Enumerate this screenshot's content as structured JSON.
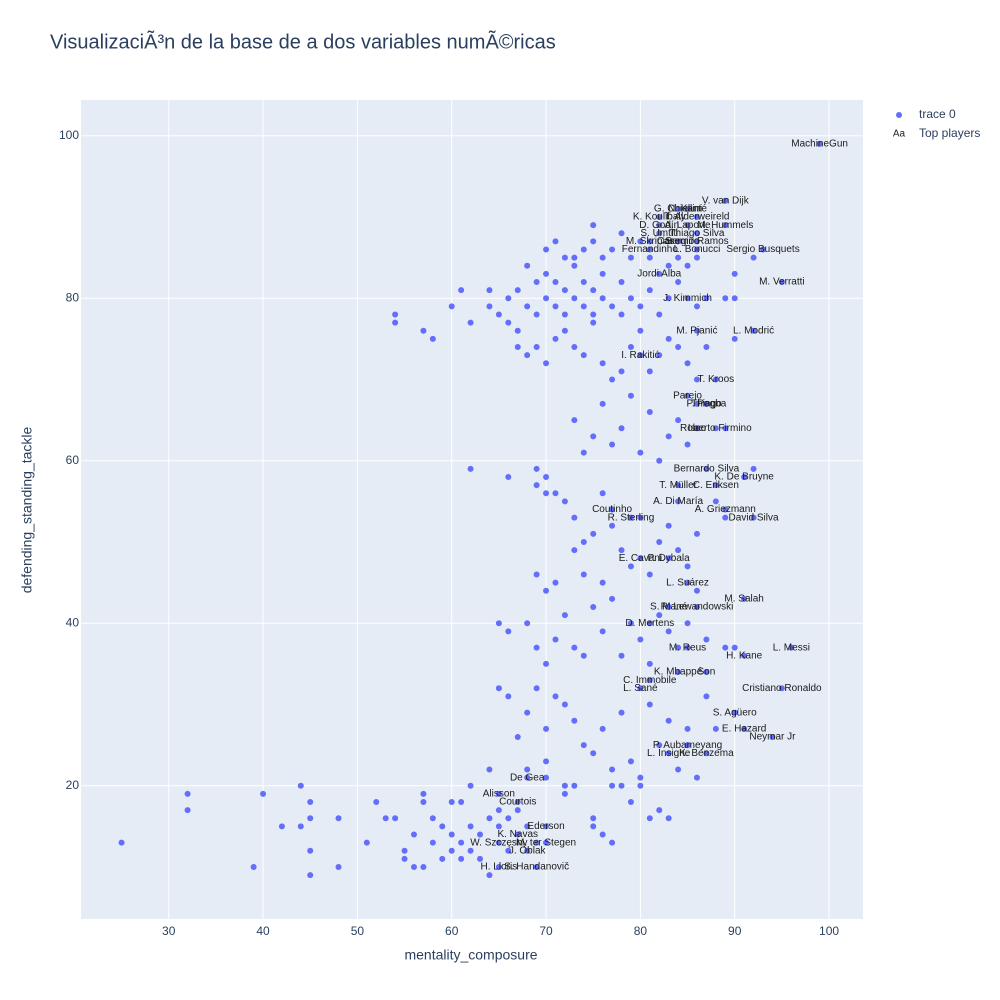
{
  "chart_data": {
    "type": "scatter",
    "title": "VisualizaciÃ³n de la base de a dos variables numÃ©ricas",
    "xlabel": "mentality_composure",
    "ylabel": "defending_standing_tackle",
    "xlim": [
      20.7,
      103.6
    ],
    "ylim": [
      3.6,
      104.4
    ],
    "xticks": [
      30,
      40,
      50,
      60,
      70,
      80,
      90,
      100
    ],
    "yticks": [
      20,
      40,
      60,
      80,
      100
    ],
    "grid": true,
    "legend": "top-right",
    "series": [
      {
        "name": "trace 0",
        "color": "#636efa",
        "x": [
          99,
          89,
          84,
          85,
          82,
          86,
          82,
          85,
          89,
          82,
          86,
          81,
          84,
          86,
          81,
          86,
          93,
          82,
          95,
          85,
          86,
          92,
          80,
          88,
          85,
          87,
          87,
          86,
          88,
          87,
          91,
          84,
          88,
          84,
          89,
          77,
          79,
          92,
          80,
          83,
          85,
          91,
          83,
          86,
          81,
          85,
          96,
          91,
          84,
          87,
          81,
          80,
          95,
          90,
          91,
          94,
          85,
          83,
          87,
          68,
          65,
          67,
          70,
          67,
          65,
          70,
          68,
          65,
          69,
          25,
          32,
          32,
          39,
          40,
          42,
          44,
          44,
          45,
          45,
          45,
          45,
          48,
          48,
          51,
          52,
          53,
          54,
          55,
          55,
          56,
          56,
          57,
          57,
          57,
          58,
          58,
          59,
          59,
          60,
          60,
          60,
          61,
          61,
          61,
          62,
          62,
          62,
          63,
          63,
          64,
          64,
          64,
          65,
          65,
          66,
          66,
          67,
          68,
          68,
          69,
          70,
          70,
          72,
          72,
          73,
          75,
          75,
          76,
          77,
          77,
          78,
          79,
          80,
          81,
          82,
          83,
          70,
          71,
          72,
          73,
          74,
          75,
          75,
          76,
          77,
          78,
          79,
          80,
          81,
          83,
          84,
          85,
          86,
          92,
          54,
          54,
          60,
          61,
          62,
          64,
          64,
          65,
          66,
          66,
          67,
          68,
          68,
          69,
          69,
          70,
          70,
          71,
          71,
          72,
          72,
          73,
          73,
          74,
          74,
          75,
          75,
          76,
          76,
          77,
          78,
          78,
          79,
          80,
          81,
          82,
          83,
          84,
          86,
          87,
          89,
          90,
          90,
          57,
          58,
          67,
          67,
          68,
          69,
          70,
          71,
          72,
          73,
          74,
          75,
          76,
          77,
          78,
          79,
          80,
          81,
          82,
          83,
          84,
          85,
          86,
          87,
          90,
          62,
          69,
          70,
          71,
          73,
          74,
          75,
          76,
          77,
          78,
          79,
          80,
          81,
          82,
          83,
          84,
          85,
          86,
          89,
          92,
          66,
          69,
          70,
          72,
          73,
          74,
          75,
          76,
          77,
          78,
          79,
          80,
          81,
          82,
          83,
          84,
          85,
          86,
          69,
          70,
          71,
          73,
          74,
          76,
          88,
          89,
          65,
          66,
          68,
          69,
          70,
          71,
          72,
          73,
          74,
          75,
          76,
          77,
          78,
          79,
          80,
          81,
          82,
          83,
          84,
          85,
          86,
          87,
          89,
          90,
          65,
          66,
          67,
          68,
          69,
          70,
          71,
          72,
          73,
          74,
          75,
          76,
          77,
          78,
          79,
          80,
          81,
          82,
          83,
          84,
          85,
          86,
          87,
          88
        ],
        "y": [
          99,
          92,
          91,
          91,
          90,
          90,
          89,
          89,
          89,
          88,
          88,
          87,
          87,
          87,
          86,
          86,
          86,
          83,
          82,
          80,
          76,
          76,
          73,
          70,
          68,
          67,
          67,
          64,
          64,
          59,
          58,
          57,
          57,
          55,
          54,
          54,
          53,
          53,
          48,
          48,
          45,
          43,
          42,
          42,
          40,
          37,
          37,
          36,
          34,
          34,
          33,
          32,
          32,
          29,
          27,
          26,
          25,
          24,
          24,
          21,
          19,
          18,
          15,
          14,
          13,
          13,
          12,
          10,
          10,
          13,
          19,
          17,
          10,
          19,
          15,
          15,
          20,
          18,
          16,
          12,
          9,
          16,
          10,
          13,
          18,
          16,
          16,
          12,
          11,
          14,
          10,
          19,
          18,
          10,
          16,
          13,
          11,
          15,
          14,
          18,
          12,
          13,
          18,
          11,
          15,
          12,
          20,
          14,
          11,
          16,
          22,
          9,
          17,
          15,
          16,
          12,
          17,
          22,
          15,
          13,
          21,
          23,
          20,
          19,
          20,
          16,
          15,
          14,
          13,
          20,
          20,
          18,
          20,
          16,
          17,
          16,
          86,
          87,
          85,
          85,
          86,
          89,
          87,
          85,
          86,
          88,
          85,
          87,
          85,
          84,
          85,
          84,
          85,
          85,
          78,
          77,
          79,
          81,
          77,
          79,
          81,
          78,
          77,
          80,
          81,
          84,
          79,
          82,
          78,
          80,
          83,
          79,
          82,
          78,
          81,
          80,
          84,
          79,
          82,
          78,
          81,
          80,
          83,
          79,
          82,
          78,
          80,
          79,
          81,
          78,
          80,
          82,
          79,
          80,
          80,
          83,
          80,
          76,
          75,
          76,
          74,
          73,
          74,
          72,
          75,
          76,
          74,
          73,
          77,
          72,
          70,
          71,
          74,
          76,
          71,
          73,
          75,
          74,
          72,
          70,
          74,
          75,
          59,
          59,
          58,
          56,
          65,
          61,
          63,
          67,
          62,
          64,
          68,
          61,
          66,
          60,
          63,
          65,
          62,
          67,
          64,
          59,
          58,
          57,
          56,
          55,
          53,
          50,
          51,
          56,
          52,
          49,
          47,
          53,
          46,
          50,
          52,
          49,
          47,
          51,
          46,
          44,
          45,
          49,
          46,
          45,
          55,
          53,
          40,
          39,
          40,
          37,
          35,
          38,
          41,
          37,
          36,
          42,
          39,
          43,
          36,
          40,
          38,
          35,
          41,
          39,
          37,
          40,
          44,
          38,
          37,
          37,
          32,
          31,
          26,
          29,
          32,
          27,
          31,
          30,
          28,
          25,
          24,
          27,
          22,
          29,
          23,
          21,
          30,
          25,
          28,
          22,
          27,
          21,
          31,
          27
        ]
      },
      {
        "name": "Top players",
        "legend_icon": "Aa",
        "mode": "text",
        "x": [
          99,
          89,
          84,
          85,
          82,
          86,
          82,
          85,
          89,
          82,
          86,
          81,
          84,
          86,
          81,
          86,
          93,
          82,
          95,
          85,
          86,
          92,
          80,
          88,
          85,
          87,
          87,
          86,
          88,
          87,
          91,
          84,
          88,
          84,
          89,
          77,
          79,
          92,
          80,
          83,
          85,
          91,
          83,
          86,
          81,
          85,
          96,
          91,
          84,
          87,
          81,
          80,
          95,
          90,
          91,
          94,
          85,
          83,
          87,
          68,
          65,
          67,
          70,
          67,
          65,
          70,
          68,
          65,
          69
        ],
        "y": [
          99,
          92,
          91,
          91,
          90,
          90,
          89,
          89,
          89,
          88,
          88,
          87,
          87,
          87,
          86,
          86,
          86,
          83,
          82,
          80,
          76,
          76,
          73,
          70,
          68,
          67,
          67,
          64,
          64,
          59,
          58,
          57,
          57,
          55,
          54,
          54,
          53,
          53,
          48,
          48,
          45,
          43,
          42,
          42,
          40,
          37,
          37,
          36,
          34,
          34,
          33,
          32,
          32,
          29,
          27,
          26,
          25,
          24,
          24,
          21,
          19,
          18,
          15,
          14,
          13,
          13,
          12,
          10,
          10
        ],
        "labels": [
          "MachineGun",
          "V. van Dijk",
          "G. Chiellini",
          "N. Kanté",
          "K. Koulibaly",
          "T. Alderweireld",
          "D. Godín",
          "A. Laporte",
          "M. Hummels",
          "S. Umtiti",
          "Thiago Silva",
          "M. Škriniar",
          "Casemiro",
          "Sergio Ramos",
          "Fernandinho",
          "L. Bonucci",
          "Sergio Busquets",
          "Jordi Alba",
          "M. Verratti",
          "J. Kimmich",
          "M. Pjanić",
          "L. Modrić",
          "I. Rakitić",
          "T. Kroos",
          "Parejo",
          "P. Pogba",
          "Thiago",
          "Isco",
          "Roberto Firmino",
          "Bernardo Silva",
          "K. De Bruyne",
          "T. Müller",
          "C. Eriksen",
          "A. Di María",
          "A. Griezmann",
          "Coutinho",
          "R. Sterling",
          "David Silva",
          "E. Cavani",
          "P. Dybala",
          "L. Suárez",
          "M. Salah",
          "S. Mané",
          "R. Lewandowski",
          "D. Mertens",
          "M. Reus",
          "L. Messi",
          "H. Kane",
          "K. Mbappé",
          "Son",
          "C. Immobile",
          "L. Sané",
          "Cristiano Ronaldo",
          "S. Agüero",
          "E. Hazard",
          "Neymar Jr",
          "P. Aubameyang",
          "L. Insigne",
          "K. Benzema",
          "De Gea",
          "Alisson",
          "Courtois",
          "Ederson",
          "K. Navas",
          "W. Szczęsny",
          "M. ter Stegen",
          "J. Oblak",
          "H. Lloris",
          "S. Handanovič"
        ]
      }
    ]
  }
}
